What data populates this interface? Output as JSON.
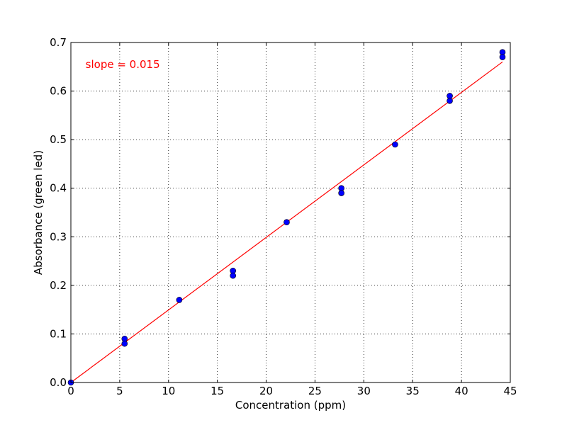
{
  "chart_data": {
    "type": "scatter",
    "xlabel": "Concentration (ppm)",
    "ylabel": "Absorbance (green led)",
    "xlim": [
      0,
      45
    ],
    "ylim": [
      0,
      0.7
    ],
    "xticks": [
      0,
      5,
      10,
      15,
      20,
      25,
      30,
      35,
      40,
      45
    ],
    "yticks": [
      0.0,
      0.1,
      0.2,
      0.3,
      0.4,
      0.5,
      0.6,
      0.7
    ],
    "xtick_labels": [
      "0",
      "5",
      "10",
      "15",
      "20",
      "25",
      "30",
      "35",
      "40",
      "45"
    ],
    "ytick_labels": [
      "0.0",
      "0.1",
      "0.2",
      "0.3",
      "0.4",
      "0.5",
      "0.6",
      "0.7"
    ],
    "grid": true,
    "series": [
      {
        "kind": "points",
        "color": "#0000ff",
        "x": [
          0,
          5.5,
          5.5,
          11.1,
          16.6,
          16.6,
          22.1,
          27.7,
          27.7,
          33.2,
          38.8,
          38.8,
          44.2,
          44.2
        ],
        "y": [
          0.0,
          0.09,
          0.08,
          0.17,
          0.23,
          0.22,
          0.33,
          0.4,
          0.39,
          0.49,
          0.59,
          0.58,
          0.68,
          0.67
        ]
      },
      {
        "kind": "fit-line",
        "color": "#ff0000",
        "x": [
          0,
          44.2
        ],
        "y": [
          0.0,
          0.66
        ]
      }
    ],
    "annotations": [
      {
        "text": "slope = 0.015",
        "color": "#ff0000",
        "x": 1.5,
        "y": 0.655
      }
    ]
  }
}
